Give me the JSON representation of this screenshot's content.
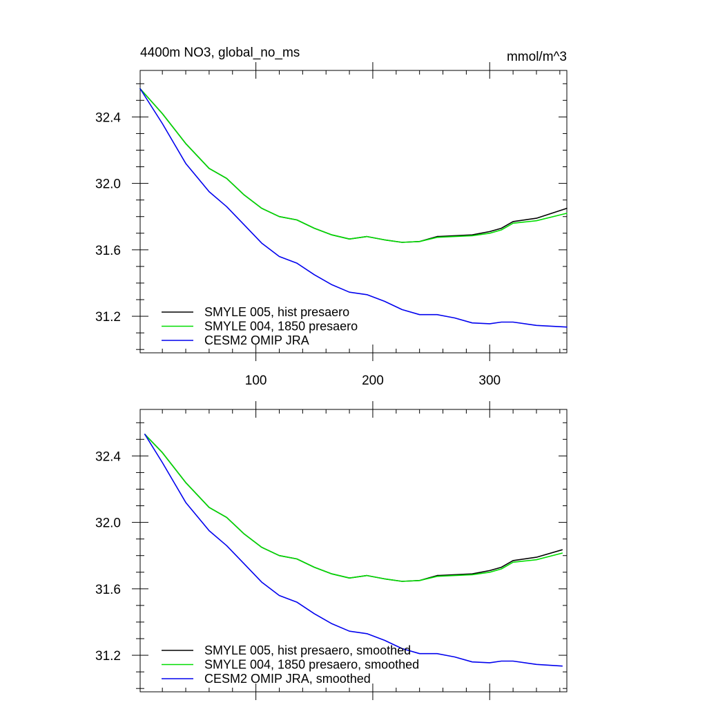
{
  "chart_data": [
    {
      "type": "line",
      "title": "4400m NO3, global_no_ms",
      "units": "mmol/m^3",
      "xlim": [
        1,
        366
      ],
      "ylim": [
        30.98,
        32.68
      ],
      "xticks": [
        100,
        200,
        300
      ],
      "xtick_labels": [
        "100",
        "200",
        "300"
      ],
      "yticks": [
        31.2,
        31.6,
        32.0,
        32.4
      ],
      "ytick_labels": [
        "31.2",
        "31.6",
        "32.0",
        "32.4"
      ],
      "show_xtick_labels": true,
      "grid": false,
      "legend_position": "bottom-left",
      "x": [
        1,
        20,
        40,
        60,
        75,
        90,
        105,
        120,
        135,
        150,
        165,
        180,
        195,
        210,
        225,
        240,
        255,
        270,
        285,
        300,
        310,
        320,
        340,
        366
      ],
      "series": [
        {
          "name": "SMYLE 005, hist presaero",
          "color": "#000000",
          "values": [
            32.57,
            32.42,
            32.24,
            32.09,
            32.03,
            31.93,
            31.85,
            31.8,
            31.78,
            31.73,
            31.69,
            31.665,
            31.68,
            31.66,
            31.645,
            31.65,
            31.68,
            31.685,
            31.69,
            31.71,
            31.73,
            31.77,
            31.79,
            31.85
          ]
        },
        {
          "name": "SMYLE 004, 1850 presaero",
          "color": "#00dd00",
          "values": [
            32.57,
            32.42,
            32.24,
            32.09,
            32.03,
            31.93,
            31.85,
            31.8,
            31.78,
            31.73,
            31.69,
            31.665,
            31.68,
            31.66,
            31.645,
            31.65,
            31.675,
            31.68,
            31.685,
            31.7,
            31.72,
            31.76,
            31.775,
            31.82
          ]
        },
        {
          "name": "CESM2 OMIP JRA",
          "color": "#0000ee",
          "values": [
            32.57,
            32.36,
            32.12,
            31.95,
            31.86,
            31.75,
            31.64,
            31.56,
            31.52,
            31.45,
            31.39,
            31.345,
            31.33,
            31.29,
            31.24,
            31.21,
            31.21,
            31.19,
            31.16,
            31.155,
            31.165,
            31.165,
            31.145,
            31.135
          ]
        }
      ]
    },
    {
      "type": "line",
      "title": "",
      "units": "",
      "xlim": [
        1,
        366
      ],
      "ylim": [
        30.98,
        32.68
      ],
      "xticks": [
        100,
        200,
        300
      ],
      "xtick_labels": [],
      "yticks": [
        31.2,
        31.6,
        32.0,
        32.4
      ],
      "ytick_labels": [
        "31.2",
        "31.6",
        "32.0",
        "32.4"
      ],
      "show_xtick_labels": false,
      "grid": false,
      "legend_position": "bottom-left",
      "x": [
        5,
        20,
        40,
        60,
        75,
        90,
        105,
        120,
        135,
        150,
        165,
        180,
        195,
        210,
        225,
        240,
        255,
        270,
        285,
        300,
        310,
        320,
        340,
        362
      ],
      "series": [
        {
          "name": "SMYLE 005, hist presaero, smoothed",
          "color": "#000000",
          "values": [
            32.53,
            32.42,
            32.24,
            32.09,
            32.03,
            31.93,
            31.85,
            31.8,
            31.78,
            31.73,
            31.69,
            31.665,
            31.68,
            31.66,
            31.645,
            31.65,
            31.68,
            31.685,
            31.69,
            31.71,
            31.73,
            31.77,
            31.79,
            31.835
          ]
        },
        {
          "name": "SMYLE 004, 1850 presaero, smoothed",
          "color": "#00dd00",
          "values": [
            32.53,
            32.42,
            32.24,
            32.09,
            32.03,
            31.93,
            31.85,
            31.8,
            31.78,
            31.73,
            31.69,
            31.665,
            31.68,
            31.66,
            31.645,
            31.65,
            31.675,
            31.68,
            31.685,
            31.7,
            31.72,
            31.76,
            31.775,
            31.815
          ]
        },
        {
          "name": "CESM2 OMIP JRA, smoothed",
          "color": "#0000ee",
          "values": [
            32.53,
            32.36,
            32.12,
            31.95,
            31.86,
            31.75,
            31.64,
            31.56,
            31.52,
            31.45,
            31.39,
            31.345,
            31.33,
            31.29,
            31.24,
            31.21,
            31.21,
            31.19,
            31.16,
            31.155,
            31.165,
            31.165,
            31.145,
            31.135
          ]
        }
      ]
    }
  ]
}
